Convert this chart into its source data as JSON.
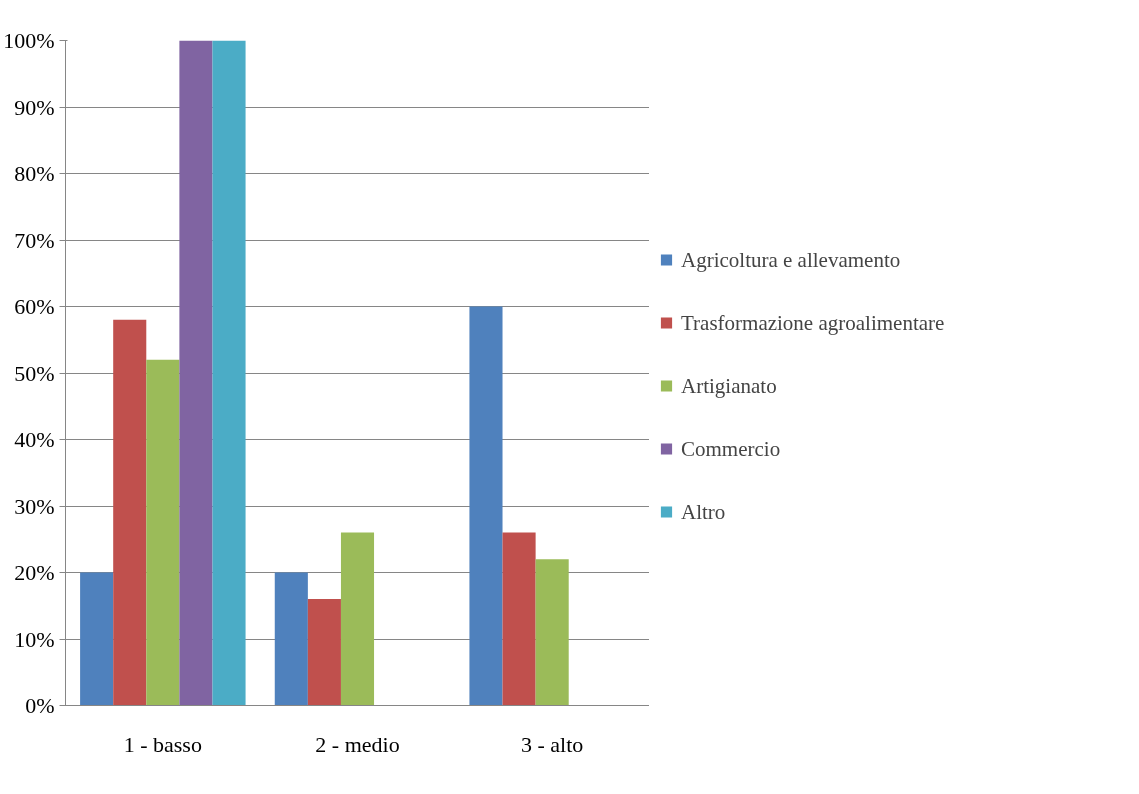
{
  "chart_data": {
    "type": "bar",
    "categories": [
      "1 - basso",
      "2 - medio",
      "3 - alto"
    ],
    "series": [
      {
        "name": "Agricoltura e allevamento",
        "color": "#4f81bd",
        "values": [
          20,
          20,
          60
        ]
      },
      {
        "name": "Trasformazione agroalimentare",
        "color": "#c0504d",
        "values": [
          58,
          16,
          26
        ]
      },
      {
        "name": "Artigianato",
        "color": "#9bbb59",
        "values": [
          52,
          26,
          22
        ]
      },
      {
        "name": "Commercio",
        "color": "#8064a2",
        "values": [
          100,
          0,
          0
        ]
      },
      {
        "name": "Altro",
        "color": "#4bacc6",
        "values": [
          100,
          0,
          0
        ]
      }
    ],
    "ylim": [
      0,
      100
    ],
    "yticks": [
      {
        "value": 0,
        "label": "0%"
      },
      {
        "value": 10,
        "label": "10%"
      },
      {
        "value": 20,
        "label": "20%"
      },
      {
        "value": 30,
        "label": "30%"
      },
      {
        "value": 40,
        "label": "40%"
      },
      {
        "value": 50,
        "label": "50%"
      },
      {
        "value": 60,
        "label": "60%"
      },
      {
        "value": 70,
        "label": "70%"
      },
      {
        "value": 80,
        "label": "80%"
      },
      {
        "value": 90,
        "label": "90%"
      },
      {
        "value": 100,
        "label": "100%"
      }
    ],
    "grid": "y",
    "legend": "right"
  }
}
